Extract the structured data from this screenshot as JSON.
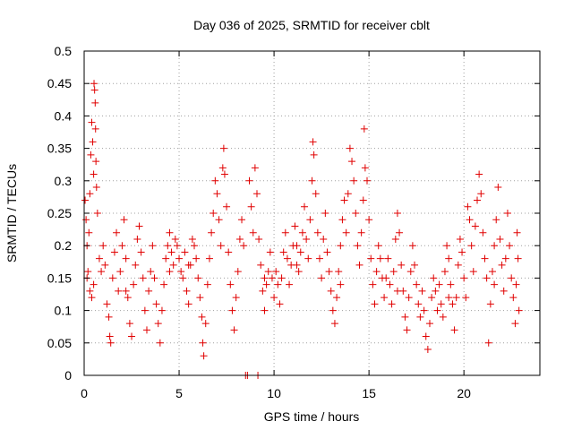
{
  "chart_data": {
    "type": "scatter",
    "title": "Day 036 of 2025, SRMTID for receiver cblt",
    "xlabel": "GPS time / hours",
    "ylabel": "SRMTID / TECUs",
    "xlim": [
      0,
      24
    ],
    "ylim": [
      0,
      0.5
    ],
    "xticks": [
      0,
      5,
      10,
      15,
      20
    ],
    "xtick_labels": [
      "0",
      "5",
      "10",
      "15",
      "20"
    ],
    "yticks": [
      0,
      0.05,
      0.1,
      0.15,
      0.2,
      0.25,
      0.3,
      0.35,
      0.4,
      0.45,
      0.5
    ],
    "ytick_labels": [
      "0",
      "0.05",
      "0.1",
      "0.15",
      "0.2",
      "0.25",
      "0.3",
      "0.35",
      "0.4",
      "0.45",
      "0.5"
    ],
    "grid": true,
    "marker": "+",
    "series": [
      {
        "name": "SRMTID",
        "color": "#e00000",
        "points": [
          [
            0.05,
            0.27
          ],
          [
            0.1,
            0.24
          ],
          [
            0.15,
            0.2
          ],
          [
            0.2,
            0.16
          ],
          [
            0.25,
            0.22
          ],
          [
            0.3,
            0.28
          ],
          [
            0.35,
            0.34
          ],
          [
            0.4,
            0.39
          ],
          [
            0.45,
            0.36
          ],
          [
            0.5,
            0.31
          ],
          [
            0.52,
            0.45
          ],
          [
            0.55,
            0.44
          ],
          [
            0.58,
            0.42
          ],
          [
            0.6,
            0.38
          ],
          [
            0.62,
            0.33
          ],
          [
            0.65,
            0.29
          ],
          [
            0.7,
            0.25
          ],
          [
            0.3,
            0.13
          ],
          [
            0.4,
            0.12
          ],
          [
            0.5,
            0.14
          ],
          [
            0.8,
            0.18
          ],
          [
            0.9,
            0.16
          ],
          [
            1.0,
            0.2
          ],
          [
            1.1,
            0.17
          ],
          [
            1.2,
            0.11
          ],
          [
            1.3,
            0.09
          ],
          [
            1.35,
            0.06
          ],
          [
            1.4,
            0.05
          ],
          [
            1.5,
            0.15
          ],
          [
            1.6,
            0.19
          ],
          [
            1.7,
            0.22
          ],
          [
            1.8,
            0.13
          ],
          [
            1.9,
            0.16
          ],
          [
            2.0,
            0.2
          ],
          [
            2.1,
            0.24
          ],
          [
            2.2,
            0.18
          ],
          [
            2.3,
            0.12
          ],
          [
            2.4,
            0.08
          ],
          [
            2.5,
            0.06
          ],
          [
            2.6,
            0.14
          ],
          [
            2.7,
            0.17
          ],
          [
            2.8,
            0.21
          ],
          [
            2.9,
            0.23
          ],
          [
            3.0,
            0.19
          ],
          [
            3.1,
            0.15
          ],
          [
            3.2,
            0.1
          ],
          [
            3.3,
            0.07
          ],
          [
            3.4,
            0.13
          ],
          [
            3.5,
            0.16
          ],
          [
            3.6,
            0.2
          ],
          [
            3.7,
            0.15
          ],
          [
            3.8,
            0.11
          ],
          [
            3.9,
            0.08
          ],
          [
            4.0,
            0.05
          ],
          [
            4.1,
            0.1
          ],
          [
            4.2,
            0.14
          ],
          [
            4.3,
            0.18
          ],
          [
            4.4,
            0.2
          ],
          [
            4.5,
            0.22
          ],
          [
            4.6,
            0.19
          ],
          [
            4.7,
            0.17
          ],
          [
            4.8,
            0.21
          ],
          [
            4.9,
            0.2
          ],
          [
            5.0,
            0.18
          ],
          [
            5.1,
            0.16
          ],
          [
            5.2,
            0.15
          ],
          [
            5.3,
            0.19
          ],
          [
            5.4,
            0.13
          ],
          [
            5.5,
            0.11
          ],
          [
            5.6,
            0.17
          ],
          [
            5.7,
            0.21
          ],
          [
            5.8,
            0.2
          ],
          [
            5.9,
            0.18
          ],
          [
            6.0,
            0.15
          ],
          [
            6.1,
            0.12
          ],
          [
            6.2,
            0.09
          ],
          [
            6.25,
            0.05
          ],
          [
            6.3,
            0.03
          ],
          [
            6.4,
            0.08
          ],
          [
            6.5,
            0.14
          ],
          [
            6.6,
            0.18
          ],
          [
            6.7,
            0.22
          ],
          [
            6.8,
            0.25
          ],
          [
            6.9,
            0.3
          ],
          [
            7.0,
            0.28
          ],
          [
            7.1,
            0.24
          ],
          [
            7.2,
            0.2
          ],
          [
            7.3,
            0.32
          ],
          [
            7.35,
            0.35
          ],
          [
            7.4,
            0.31
          ],
          [
            7.5,
            0.26
          ],
          [
            7.6,
            0.19
          ],
          [
            7.7,
            0.14
          ],
          [
            7.8,
            0.1
          ],
          [
            7.9,
            0.07
          ],
          [
            8.0,
            0.12
          ],
          [
            8.1,
            0.16
          ],
          [
            8.2,
            0.21
          ],
          [
            8.3,
            0.24
          ],
          [
            8.4,
            0.2
          ],
          [
            8.5,
            0.0
          ],
          [
            8.6,
            0.0
          ],
          [
            8.7,
            0.3
          ],
          [
            8.8,
            0.26
          ],
          [
            8.9,
            0.22
          ],
          [
            9.0,
            0.32
          ],
          [
            9.1,
            0.28
          ],
          [
            9.15,
            0.0
          ],
          [
            9.2,
            0.21
          ],
          [
            9.3,
            0.17
          ],
          [
            9.4,
            0.13
          ],
          [
            9.5,
            0.1
          ],
          [
            9.6,
            0.14
          ],
          [
            9.7,
            0.16
          ],
          [
            9.8,
            0.19
          ],
          [
            9.9,
            0.15
          ],
          [
            10.0,
            0.12
          ],
          [
            10.1,
            0.16
          ],
          [
            10.2,
            0.14
          ],
          [
            10.3,
            0.11
          ],
          [
            10.4,
            0.15
          ],
          [
            10.5,
            0.19
          ],
          [
            10.6,
            0.22
          ],
          [
            10.7,
            0.18
          ],
          [
            10.8,
            0.14
          ],
          [
            10.9,
            0.17
          ],
          [
            11.0,
            0.2
          ],
          [
            11.1,
            0.23
          ],
          [
            11.2,
            0.2
          ],
          [
            11.3,
            0.16
          ],
          [
            11.4,
            0.19
          ],
          [
            11.5,
            0.22
          ],
          [
            11.6,
            0.26
          ],
          [
            11.7,
            0.21
          ],
          [
            11.8,
            0.18
          ],
          [
            11.9,
            0.24
          ],
          [
            12.0,
            0.3
          ],
          [
            12.05,
            0.36
          ],
          [
            12.1,
            0.34
          ],
          [
            12.2,
            0.28
          ],
          [
            12.3,
            0.22
          ],
          [
            12.4,
            0.18
          ],
          [
            12.5,
            0.15
          ],
          [
            12.6,
            0.21
          ],
          [
            12.7,
            0.25
          ],
          [
            12.8,
            0.19
          ],
          [
            12.9,
            0.16
          ],
          [
            13.0,
            0.13
          ],
          [
            13.1,
            0.1
          ],
          [
            13.2,
            0.08
          ],
          [
            13.3,
            0.12
          ],
          [
            13.4,
            0.16
          ],
          [
            13.5,
            0.2
          ],
          [
            13.6,
            0.24
          ],
          [
            13.7,
            0.27
          ],
          [
            13.8,
            0.22
          ],
          [
            13.9,
            0.28
          ],
          [
            14.0,
            0.35
          ],
          [
            14.1,
            0.33
          ],
          [
            14.2,
            0.3
          ],
          [
            14.3,
            0.25
          ],
          [
            14.4,
            0.2
          ],
          [
            14.5,
            0.17
          ],
          [
            14.6,
            0.22
          ],
          [
            14.7,
            0.27
          ],
          [
            14.75,
            0.38
          ],
          [
            14.8,
            0.32
          ],
          [
            14.9,
            0.3
          ],
          [
            15.0,
            0.24
          ],
          [
            15.1,
            0.18
          ],
          [
            15.2,
            0.14
          ],
          [
            15.3,
            0.11
          ],
          [
            15.4,
            0.16
          ],
          [
            15.5,
            0.2
          ],
          [
            15.6,
            0.18
          ],
          [
            15.7,
            0.15
          ],
          [
            15.8,
            0.12
          ],
          [
            15.9,
            0.15
          ],
          [
            16.0,
            0.18
          ],
          [
            16.1,
            0.14
          ],
          [
            16.2,
            0.11
          ],
          [
            16.3,
            0.16
          ],
          [
            16.4,
            0.21
          ],
          [
            16.5,
            0.25
          ],
          [
            16.6,
            0.22
          ],
          [
            16.7,
            0.17
          ],
          [
            16.8,
            0.13
          ],
          [
            16.9,
            0.09
          ],
          [
            17.0,
            0.07
          ],
          [
            17.1,
            0.12
          ],
          [
            17.2,
            0.16
          ],
          [
            17.3,
            0.2
          ],
          [
            17.4,
            0.17
          ],
          [
            17.5,
            0.14
          ],
          [
            17.6,
            0.11
          ],
          [
            17.7,
            0.09
          ],
          [
            17.8,
            0.13
          ],
          [
            17.9,
            0.1
          ],
          [
            18.0,
            0.06
          ],
          [
            18.1,
            0.04
          ],
          [
            18.2,
            0.08
          ],
          [
            18.3,
            0.12
          ],
          [
            18.4,
            0.15
          ],
          [
            18.5,
            0.13
          ],
          [
            18.6,
            0.1
          ],
          [
            18.7,
            0.14
          ],
          [
            18.8,
            0.11
          ],
          [
            18.9,
            0.09
          ],
          [
            19.0,
            0.16
          ],
          [
            19.1,
            0.2
          ],
          [
            19.2,
            0.18
          ],
          [
            19.3,
            0.14
          ],
          [
            19.4,
            0.11
          ],
          [
            19.5,
            0.07
          ],
          [
            19.6,
            0.12
          ],
          [
            19.7,
            0.17
          ],
          [
            19.8,
            0.21
          ],
          [
            19.9,
            0.19
          ],
          [
            20.0,
            0.15
          ],
          [
            20.1,
            0.12
          ],
          [
            20.2,
            0.26
          ],
          [
            20.3,
            0.24
          ],
          [
            20.4,
            0.2
          ],
          [
            20.5,
            0.16
          ],
          [
            20.6,
            0.23
          ],
          [
            20.7,
            0.27
          ],
          [
            20.8,
            0.31
          ],
          [
            20.9,
            0.28
          ],
          [
            21.0,
            0.22
          ],
          [
            21.1,
            0.18
          ],
          [
            21.2,
            0.15
          ],
          [
            21.3,
            0.05
          ],
          [
            21.4,
            0.11
          ],
          [
            21.5,
            0.16
          ],
          [
            21.6,
            0.2
          ],
          [
            21.7,
            0.24
          ],
          [
            21.8,
            0.29
          ],
          [
            21.9,
            0.21
          ],
          [
            22.0,
            0.17
          ],
          [
            22.1,
            0.13
          ],
          [
            22.2,
            0.18
          ],
          [
            22.3,
            0.25
          ],
          [
            22.4,
            0.2
          ],
          [
            22.5,
            0.15
          ],
          [
            22.6,
            0.12
          ],
          [
            22.7,
            0.08
          ],
          [
            22.75,
            0.14
          ],
          [
            22.8,
            0.22
          ],
          [
            22.85,
            0.18
          ],
          [
            22.9,
            0.1
          ],
          [
            0.15,
            0.15
          ],
          [
            2.2,
            0.13
          ],
          [
            4.5,
            0.16
          ],
          [
            5.5,
            0.17
          ],
          [
            9.5,
            0.15
          ],
          [
            11.2,
            0.17
          ],
          [
            13.5,
            0.14
          ],
          [
            16.5,
            0.13
          ],
          [
            19.2,
            0.12
          ],
          [
            21.6,
            0.14
          ]
        ]
      }
    ]
  }
}
